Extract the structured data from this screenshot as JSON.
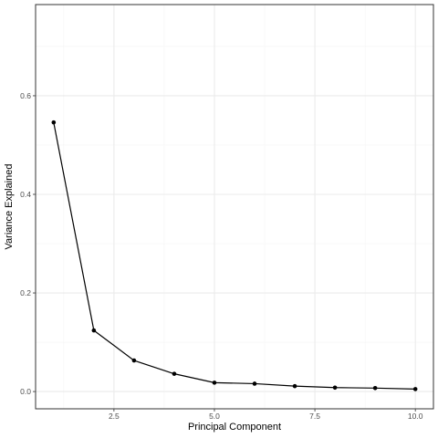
{
  "chart_data": {
    "type": "line",
    "title": "",
    "xlabel": "Principal Component",
    "ylabel": "Variance Explained",
    "xlim": [
      0.55,
      10.45
    ],
    "ylim": [
      -0.035,
      0.785
    ],
    "x_ticks": [
      2.5,
      5.0,
      7.5,
      10.0
    ],
    "x_tick_labels": [
      "2.5",
      "5.0",
      "7.5",
      "10.0"
    ],
    "x_minor_ticks": [
      3.75,
      6.25,
      8.75
    ],
    "x_minor_ticks_low": [
      1.25
    ],
    "y_ticks": [
      0.0,
      0.2,
      0.4,
      0.6
    ],
    "y_tick_labels": [
      "0.0",
      "0.2",
      "0.4",
      "0.6"
    ],
    "y_minor_ticks": [
      0.1,
      0.3,
      0.5,
      0.7
    ],
    "grid": true,
    "legend": "none",
    "series": [
      {
        "x": [
          1,
          2,
          3,
          4,
          5,
          6,
          7,
          8,
          9,
          10
        ],
        "values": [
          0.546,
          0.124,
          0.063,
          0.036,
          0.018,
          0.016,
          0.011,
          0.008,
          0.007,
          0.005
        ]
      }
    ],
    "colors": {
      "line": "#000000",
      "point": "#000000",
      "grid_major": "#ebebeb",
      "grid_minor": "#f5f5f5",
      "panel_border": "#333333",
      "tick_text": "#4d4d4d"
    }
  }
}
